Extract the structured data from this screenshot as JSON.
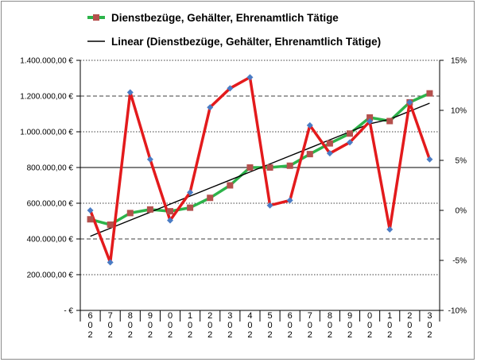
{
  "chart_data": {
    "type": "line",
    "title": "",
    "xlabel": "",
    "ylabel": "",
    "categories": [
      "6/0/2",
      "7/0/2",
      "8/0/2",
      "9/0/2",
      "0/0/2",
      "1/0/2",
      "2/0/2",
      "3/0/2",
      "4/0/2",
      "5/0/2",
      "6/0/2",
      "7/0/2",
      "8/0/2",
      "9/0/2",
      "0/0/2",
      "1/0/2",
      "2/0/2",
      "3/0/2"
    ],
    "category_glyph_rows": [
      [
        "6",
        "7",
        "8",
        "9",
        "0",
        "1",
        "2",
        "3",
        "4",
        "5",
        "6",
        "7",
        "8",
        "9",
        "0",
        "1",
        "2",
        "3"
      ],
      [
        "0",
        "0",
        "0",
        "0",
        "0",
        "0",
        "0",
        "0",
        "0",
        "0",
        "0",
        "0",
        "0",
        "0",
        "0",
        "0",
        "0",
        "0"
      ],
      [
        "2",
        "2",
        "2",
        "2",
        "2",
        "2",
        "2",
        "2",
        "2",
        "2",
        "2",
        "2",
        "2",
        "2",
        "2",
        "2",
        "2",
        "2"
      ]
    ],
    "ylim": [
      0,
      1400000
    ],
    "y_ticks": [
      0,
      200000,
      400000,
      600000,
      800000,
      1000000,
      1200000,
      1400000
    ],
    "y_tick_labels": [
      "-   €",
      "200.000,00 €",
      "400.000,00 €",
      "600.000,00 €",
      "800.000,00 €",
      "1.000.000,00 €",
      "1.200.000,00 €",
      "1.400.000,00 €"
    ],
    "y2lim": [
      -10,
      15
    ],
    "y2_ticks": [
      -10,
      -5,
      0,
      5,
      10,
      15
    ],
    "y2_tick_labels": [
      "-10%",
      "-5%",
      "0%",
      "5%",
      "10%",
      "15%"
    ],
    "gridlines": [
      {
        "y": 200000,
        "style": "dotted"
      },
      {
        "y": 400000,
        "style": "dashed"
      },
      {
        "y": 600000,
        "style": "dotted"
      },
      {
        "y": 800000,
        "style": "solid"
      },
      {
        "y": 1000000,
        "style": "dotted"
      },
      {
        "y": 1200000,
        "style": "dashed"
      },
      {
        "y": 1400000,
        "style": "dotted"
      }
    ],
    "legend_position": "top",
    "series": [
      {
        "name": "Dienstbezüge, Gehälter, Ehrenamtlich Tätige",
        "axis": "left",
        "color": "#2db34a",
        "marker": "square",
        "marker_color": "#b5504d",
        "values": [
          510000,
          480000,
          545000,
          565000,
          555000,
          575000,
          630000,
          700000,
          800000,
          800000,
          810000,
          875000,
          935000,
          990000,
          1080000,
          1060000,
          1165000,
          1215000
        ]
      },
      {
        "name": "Linear (Dienstbezüge, Gehälter, Ehrenamtlich Tätige)",
        "axis": "left",
        "type": "trendline",
        "color": "#000000",
        "values": [
          415000,
          460000,
          505000,
          550000,
          595000,
          640000,
          685000,
          730000,
          775000,
          820000,
          865000,
          910000,
          955000,
          1000000,
          1045000,
          1070000,
          1115000,
          1160000
        ]
      },
      {
        "name": "",
        "axis": "right",
        "color": "#e31a1c",
        "marker": "diamond",
        "marker_color": "#4a7bc4",
        "values": [
          0,
          -5.2,
          11.8,
          5.1,
          -1.0,
          1.8,
          10.3,
          12.2,
          13.3,
          0.5,
          1.0,
          8.5,
          5.7,
          6.8,
          8.9,
          -1.9,
          10.8,
          5.1
        ]
      }
    ]
  }
}
